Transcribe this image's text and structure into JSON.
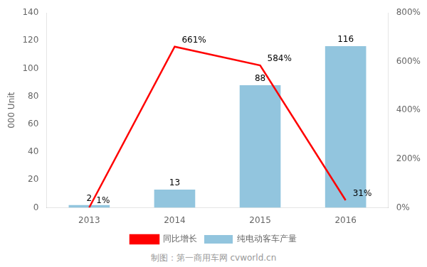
{
  "chart_data": {
    "type": "bar",
    "categories": [
      "2013",
      "2014",
      "2015",
      "2016"
    ],
    "series": [
      {
        "name": "纯电动客车产量",
        "type": "bar",
        "color": "#92C5DE",
        "values": [
          2,
          13,
          88,
          116
        ]
      },
      {
        "name": "同比增长",
        "type": "line",
        "color": "#FF0000",
        "axis": "y2",
        "values": [
          1,
          661,
          584,
          31
        ],
        "value_labels": [
          "1%",
          "661%",
          "584%",
          "31%"
        ]
      }
    ],
    "ylabel": "000 Unit",
    "ylim": [
      0,
      140
    ],
    "yticks": [
      0,
      20,
      40,
      60,
      80,
      100,
      120,
      140
    ],
    "y2lim": [
      0,
      800
    ],
    "y2ticks": [
      {
        "value": 0,
        "label": "0%"
      },
      {
        "value": 200,
        "label": "200%"
      },
      {
        "value": 400,
        "label": "400%"
      },
      {
        "value": 600,
        "label": "600%"
      },
      {
        "value": 800,
        "label": "800%"
      }
    ],
    "annotations": [
      "制图：第一商用车网  cvworld.cn"
    ],
    "data_labels": true,
    "grid": false,
    "legend": "bottom"
  }
}
